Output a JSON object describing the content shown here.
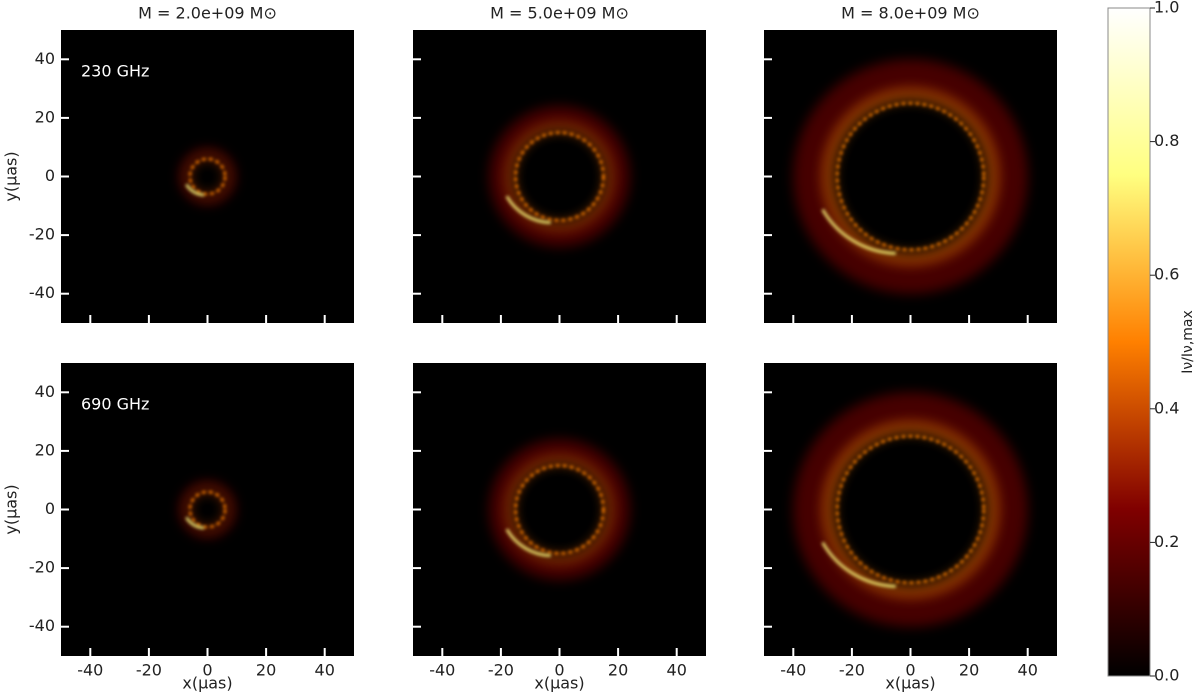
{
  "chart_data": {
    "type": "image_grid",
    "columns": [
      "M = 2.0e+09  M⊙",
      "M = 5.0e+09 M⊙",
      "M = 8.0e+09 M⊙"
    ],
    "series": [
      {
        "name": "230 GHz",
        "ring_radius": [
          6,
          15,
          25
        ]
      },
      {
        "name": "690 GHz",
        "ring_radius": [
          6,
          15,
          25
        ]
      }
    ],
    "xlabel": "x(μas)",
    "ylabel": "y(μas)",
    "xlim": [
      -50,
      50
    ],
    "ylim": [
      -50,
      50
    ],
    "xticks": [
      -40,
      -20,
      0,
      20,
      40
    ],
    "yticks": [
      -40,
      -20,
      0,
      20,
      40
    ],
    "colormap": "afmhot",
    "colorbar": {
      "label": "Iν/Iν,max",
      "lim": [
        0,
        1
      ],
      "ticks": [
        {
          "value": 0,
          "label": "0.0"
        },
        0.2,
        0.4,
        0.6,
        0.8,
        {
          "value": 1,
          "label": "1.0"
        }
      ]
    }
  }
}
